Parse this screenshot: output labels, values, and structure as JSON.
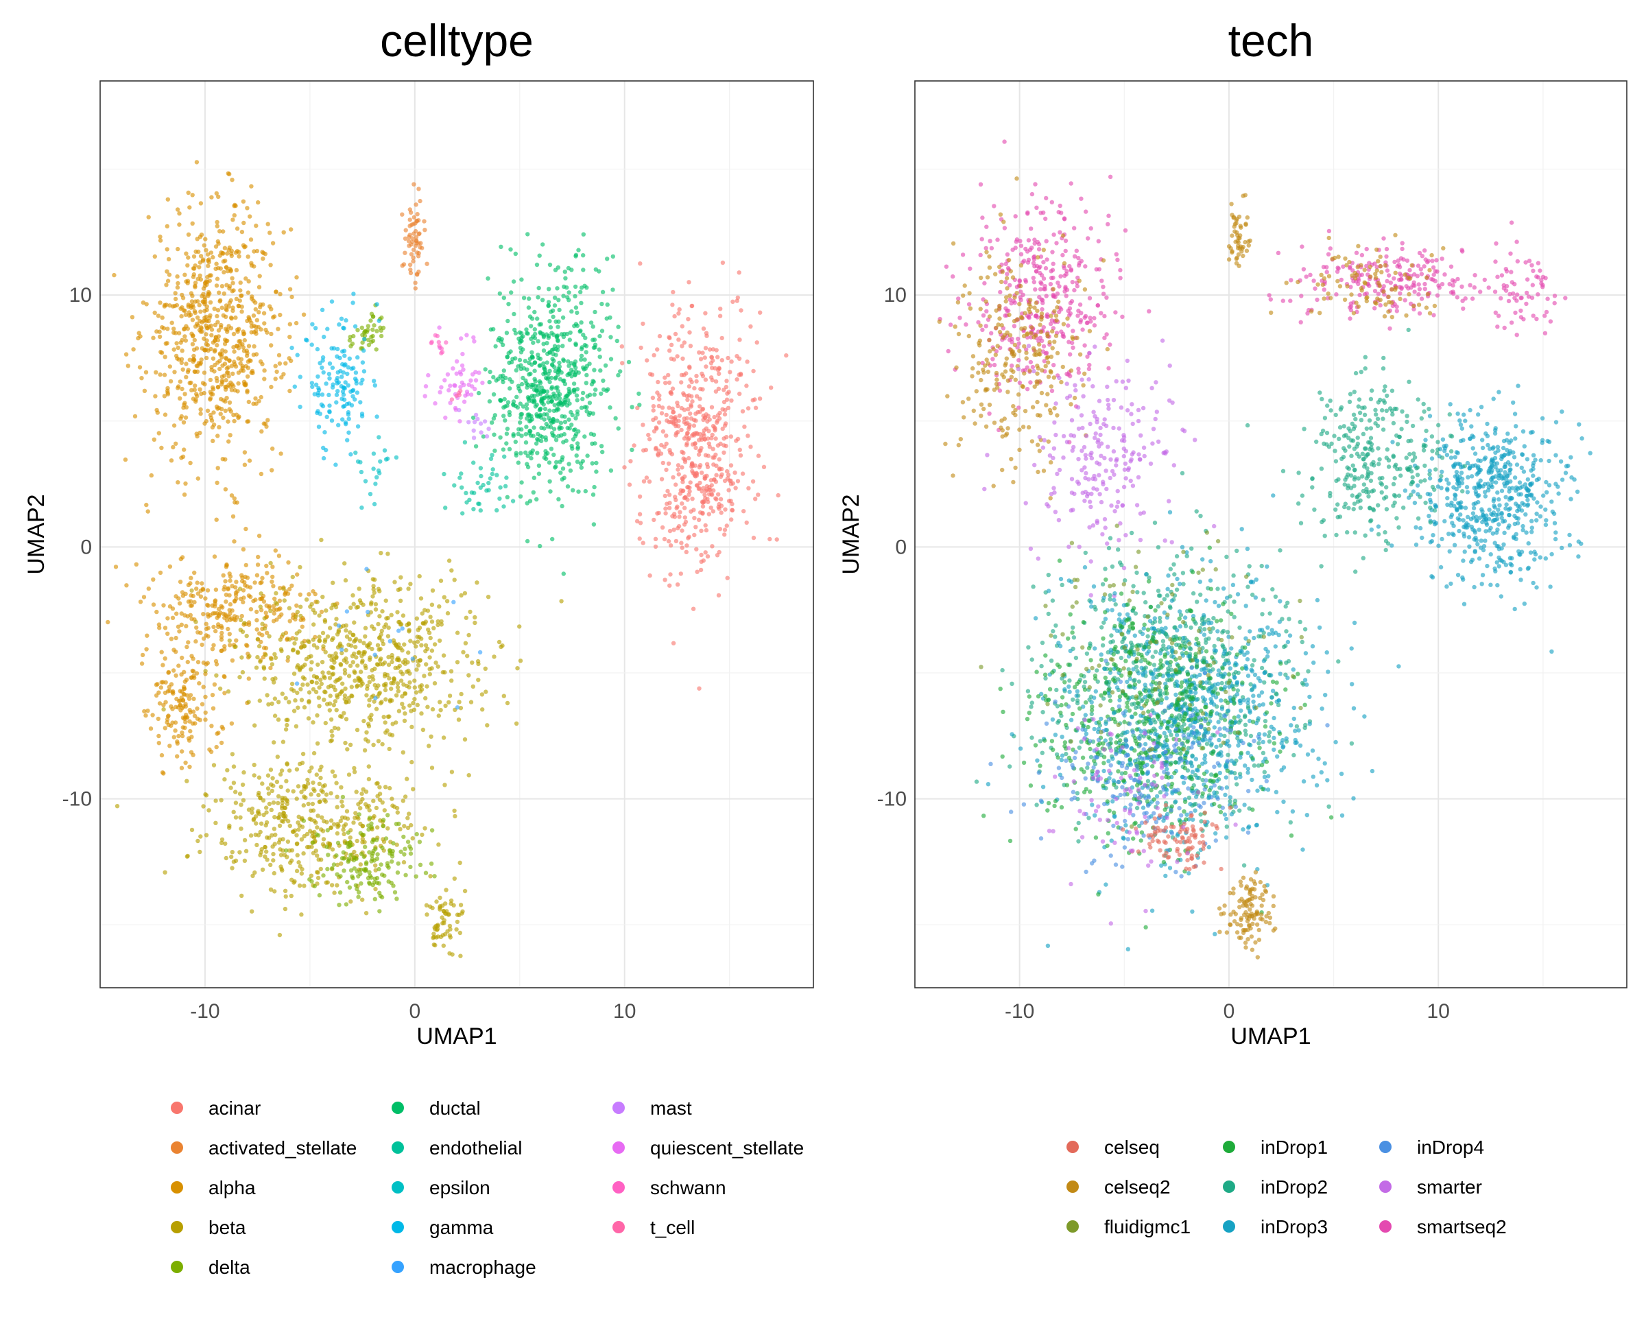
{
  "chart_data": [
    {
      "type": "scatter",
      "title": "celltype",
      "xlabel": "UMAP1",
      "ylabel": "UMAP2",
      "xlim": [
        -15,
        19
      ],
      "ylim": [
        -17.5,
        18.5
      ],
      "x_ticks": [
        -10,
        0,
        10
      ],
      "y_ticks": [
        -10,
        0,
        10
      ],
      "grid": true,
      "legend_position": "bottom",
      "legend": [
        {
          "name": "acinar",
          "color": "#F8766D"
        },
        {
          "name": "activated_stellate",
          "color": "#EA8331"
        },
        {
          "name": "alpha",
          "color": "#D89000"
        },
        {
          "name": "beta",
          "color": "#B79F00"
        },
        {
          "name": "delta",
          "color": "#7CAE00"
        },
        {
          "name": "ductal",
          "color": "#00BE67"
        },
        {
          "name": "endothelial",
          "color": "#00C19A"
        },
        {
          "name": "epsilon",
          "color": "#00BFC4"
        },
        {
          "name": "gamma",
          "color": "#00B8E7"
        },
        {
          "name": "macrophage",
          "color": "#35A2FF"
        },
        {
          "name": "mast",
          "color": "#C77CFF"
        },
        {
          "name": "quiescent_stellate",
          "color": "#E76BF3"
        },
        {
          "name": "schwann",
          "color": "#FF61C3"
        },
        {
          "name": "t_cell",
          "color": "#FF66A8"
        }
      ],
      "clusters": [
        {
          "label": "alpha",
          "center": [
            -9.5,
            8.5
          ],
          "spread": [
            3.0,
            4.5
          ],
          "weight": 700
        },
        {
          "label": "alpha",
          "center": [
            -8.5,
            -2.5
          ],
          "spread": [
            3.5,
            2.0
          ],
          "weight": 300
        },
        {
          "label": "alpha",
          "center": [
            -11.0,
            -6.5
          ],
          "spread": [
            1.6,
            2.0
          ],
          "weight": 150
        },
        {
          "label": "beta",
          "center": [
            -2.5,
            -4.5
          ],
          "spread": [
            5.5,
            3.0
          ],
          "weight": 650
        },
        {
          "label": "beta",
          "center": [
            -5.0,
            -11.0
          ],
          "spread": [
            4.5,
            2.5
          ],
          "weight": 450
        },
        {
          "label": "beta",
          "center": [
            1.5,
            -14.8
          ],
          "spread": [
            0.8,
            1.0
          ],
          "weight": 60
        },
        {
          "label": "delta",
          "center": [
            -2.5,
            -12.5
          ],
          "spread": [
            2.5,
            1.5
          ],
          "weight": 150
        },
        {
          "label": "delta",
          "center": [
            -2.2,
            8.5
          ],
          "spread": [
            0.7,
            0.8
          ],
          "weight": 40
        },
        {
          "label": "ductal",
          "center": [
            6.5,
            6.5
          ],
          "spread": [
            2.6,
            4.0
          ],
          "weight": 650
        },
        {
          "label": "acinar",
          "center": [
            13.5,
            4.0
          ],
          "spread": [
            2.5,
            4.5
          ],
          "weight": 550
        },
        {
          "label": "gamma",
          "center": [
            -3.5,
            6.5
          ],
          "spread": [
            1.8,
            2.5
          ],
          "weight": 140
        },
        {
          "label": "activated_stellate",
          "center": [
            0.0,
            12.0
          ],
          "spread": [
            0.5,
            1.6
          ],
          "weight": 60
        },
        {
          "label": "quiescent_stellate",
          "center": [
            2.0,
            6.5
          ],
          "spread": [
            1.0,
            1.5
          ],
          "weight": 50
        },
        {
          "label": "endothelial",
          "center": [
            3.0,
            2.5
          ],
          "spread": [
            1.5,
            1.2
          ],
          "weight": 40
        },
        {
          "label": "mast",
          "center": [
            3.0,
            5.0
          ],
          "spread": [
            0.8,
            0.8
          ],
          "weight": 12
        },
        {
          "label": "schwann",
          "center": [
            1.0,
            8.0
          ],
          "spread": [
            0.5,
            0.5
          ],
          "weight": 10
        },
        {
          "label": "epsilon",
          "center": [
            -2.0,
            3.0
          ],
          "spread": [
            1.0,
            1.0
          ],
          "weight": 20
        },
        {
          "label": "macrophage",
          "center": [
            -1.0,
            -4.0
          ],
          "spread": [
            3.0,
            2.0
          ],
          "weight": 15
        },
        {
          "label": "t_cell",
          "center": [
            2.0,
            6.0
          ],
          "spread": [
            0.5,
            0.5
          ],
          "weight": 5
        }
      ]
    },
    {
      "type": "scatter",
      "title": "tech",
      "xlabel": "UMAP1",
      "ylabel": "UMAP2",
      "xlim": [
        -15,
        19
      ],
      "ylim": [
        -17.5,
        18.5
      ],
      "x_ticks": [
        -10,
        0,
        10
      ],
      "y_ticks": [
        -10,
        0,
        10
      ],
      "grid": true,
      "legend_position": "bottom",
      "legend": [
        {
          "name": "celseq",
          "color": "#E36A5A"
        },
        {
          "name": "celseq2",
          "color": "#C28A16"
        },
        {
          "name": "fluidigmc1",
          "color": "#7D9A2A"
        },
        {
          "name": "inDrop1",
          "color": "#1EAB3A"
        },
        {
          "name": "inDrop2",
          "color": "#1FAA86"
        },
        {
          "name": "inDrop3",
          "color": "#16A2C3"
        },
        {
          "name": "inDrop4",
          "color": "#4A90E2"
        },
        {
          "name": "smarter",
          "color": "#C36BE6"
        },
        {
          "name": "smartseq2",
          "color": "#E44AB0"
        }
      ],
      "clusters": [
        {
          "label": "smartseq2",
          "center": [
            -9.0,
            10.0
          ],
          "spread": [
            3.0,
            3.5
          ],
          "weight": 380
        },
        {
          "label": "celseq2",
          "center": [
            -10.0,
            7.5
          ],
          "spread": [
            2.8,
            4.0
          ],
          "weight": 260
        },
        {
          "label": "smarter",
          "center": [
            -6.0,
            3.5
          ],
          "spread": [
            3.0,
            3.5
          ],
          "weight": 220
        },
        {
          "label": "smartseq2",
          "center": [
            7.5,
            10.5
          ],
          "spread": [
            3.8,
            1.3
          ],
          "weight": 220
        },
        {
          "label": "celseq2",
          "center": [
            6.5,
            10.5
          ],
          "spread": [
            3.0,
            1.5
          ],
          "weight": 90
        },
        {
          "label": "smartseq2",
          "center": [
            14.0,
            10.0
          ],
          "spread": [
            1.6,
            1.8
          ],
          "weight": 70
        },
        {
          "label": "celseq2",
          "center": [
            0.5,
            12.5
          ],
          "spread": [
            0.5,
            1.2
          ],
          "weight": 50
        },
        {
          "label": "inDrop2",
          "center": [
            -3.0,
            -5.5
          ],
          "spread": [
            5.5,
            4.5
          ],
          "weight": 700
        },
        {
          "label": "inDrop3",
          "center": [
            -2.0,
            -6.5
          ],
          "spread": [
            5.5,
            5.0
          ],
          "weight": 750
        },
        {
          "label": "inDrop1",
          "center": [
            -4.0,
            -7.0
          ],
          "spread": [
            5.0,
            4.5
          ],
          "weight": 500
        },
        {
          "label": "inDrop4",
          "center": [
            -4.0,
            -9.0
          ],
          "spread": [
            4.5,
            3.0
          ],
          "weight": 200
        },
        {
          "label": "inDrop3",
          "center": [
            12.5,
            2.0
          ],
          "spread": [
            3.2,
            3.0
          ],
          "weight": 550
        },
        {
          "label": "inDrop2",
          "center": [
            7.0,
            3.5
          ],
          "spread": [
            3.0,
            3.0
          ],
          "weight": 300
        },
        {
          "label": "celseq",
          "center": [
            -2.5,
            -11.5
          ],
          "spread": [
            1.6,
            1.0
          ],
          "weight": 90
        },
        {
          "label": "celseq2",
          "center": [
            1.0,
            -14.5
          ],
          "spread": [
            1.0,
            1.3
          ],
          "weight": 110
        },
        {
          "label": "fluidigmc1",
          "center": [
            -3.0,
            -4.0
          ],
          "spread": [
            5.0,
            4.0
          ],
          "weight": 100
        },
        {
          "label": "smarter",
          "center": [
            -5.0,
            -10.0
          ],
          "spread": [
            3.5,
            3.0
          ],
          "weight": 80
        }
      ]
    }
  ]
}
